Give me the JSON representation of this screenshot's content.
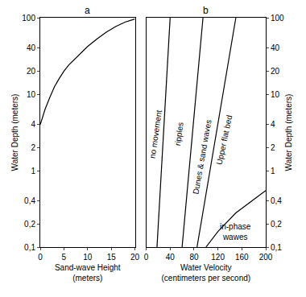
{
  "chart_data": [
    {
      "type": "line",
      "title": "a",
      "xlabel": [
        "Sand-wave Height",
        "(meters)"
      ],
      "ylabel": "Water Depth (meters)",
      "x": [
        0,
        0.5,
        1,
        2,
        3,
        4,
        5,
        6,
        8,
        10,
        12,
        14,
        16,
        18,
        20
      ],
      "values": [
        4,
        5,
        6.3,
        9,
        12.5,
        16,
        20,
        24,
        32,
        42,
        53,
        65,
        77,
        88,
        96
      ],
      "color": "#000000",
      "log": "y",
      "xlim": [
        0,
        20
      ],
      "xticks": [
        0,
        5,
        10,
        15,
        20
      ],
      "ylim": [
        0.1,
        100
      ],
      "yticks": [
        {
          "value": 0.1,
          "label": "0,1"
        },
        {
          "value": 0.2,
          "label": "0,2"
        },
        {
          "value": 0.4,
          "label": "0,4"
        },
        1,
        2,
        4,
        10,
        20,
        40,
        100
      ]
    },
    {
      "type": "line",
      "title": "b",
      "xlabel": [
        "Water Velocity",
        "(centimeters per second)"
      ],
      "ylabel": "Water Depth (meters)",
      "series": [
        {
          "x": [
            18,
            40
          ],
          "values": [
            0.1,
            100
          ]
        },
        {
          "x": [
            60,
            95
          ],
          "values": [
            0.1,
            100
          ]
        },
        {
          "x": [
            85,
            150
          ],
          "values": [
            0.1,
            100
          ]
        },
        {
          "x": [
            100,
            120,
            150,
            180,
            200
          ],
          "values": [
            0.1,
            0.16,
            0.28,
            0.42,
            0.55
          ]
        }
      ],
      "annotations": [
        {
          "text": [
            "no movement"
          ],
          "x": 16,
          "y": 3
        },
        {
          "text": [
            "ripples"
          ],
          "x": 55,
          "y": 3
        },
        {
          "text": [
            "Dunes & sand waves"
          ],
          "x": 93,
          "y": 1.5
        },
        {
          "text": [
            "Upper flat bed"
          ],
          "x": 130,
          "y": 2.5
        },
        {
          "text": [
            "in-phase",
            "wawes"
          ],
          "x": 150,
          "y": 0.16
        }
      ],
      "color": "#000000",
      "log": "y",
      "xlim": [
        0,
        200
      ],
      "xticks": [
        0,
        40,
        80,
        120,
        160,
        200
      ],
      "ylim": [
        0.1,
        100
      ],
      "yticks": [
        {
          "value": 0.1,
          "label": "0,1"
        },
        {
          "value": 0.2,
          "label": "0,2"
        },
        {
          "value": 0.4,
          "label": "0,4"
        },
        1,
        2,
        4,
        10,
        20,
        40,
        100
      ]
    }
  ]
}
